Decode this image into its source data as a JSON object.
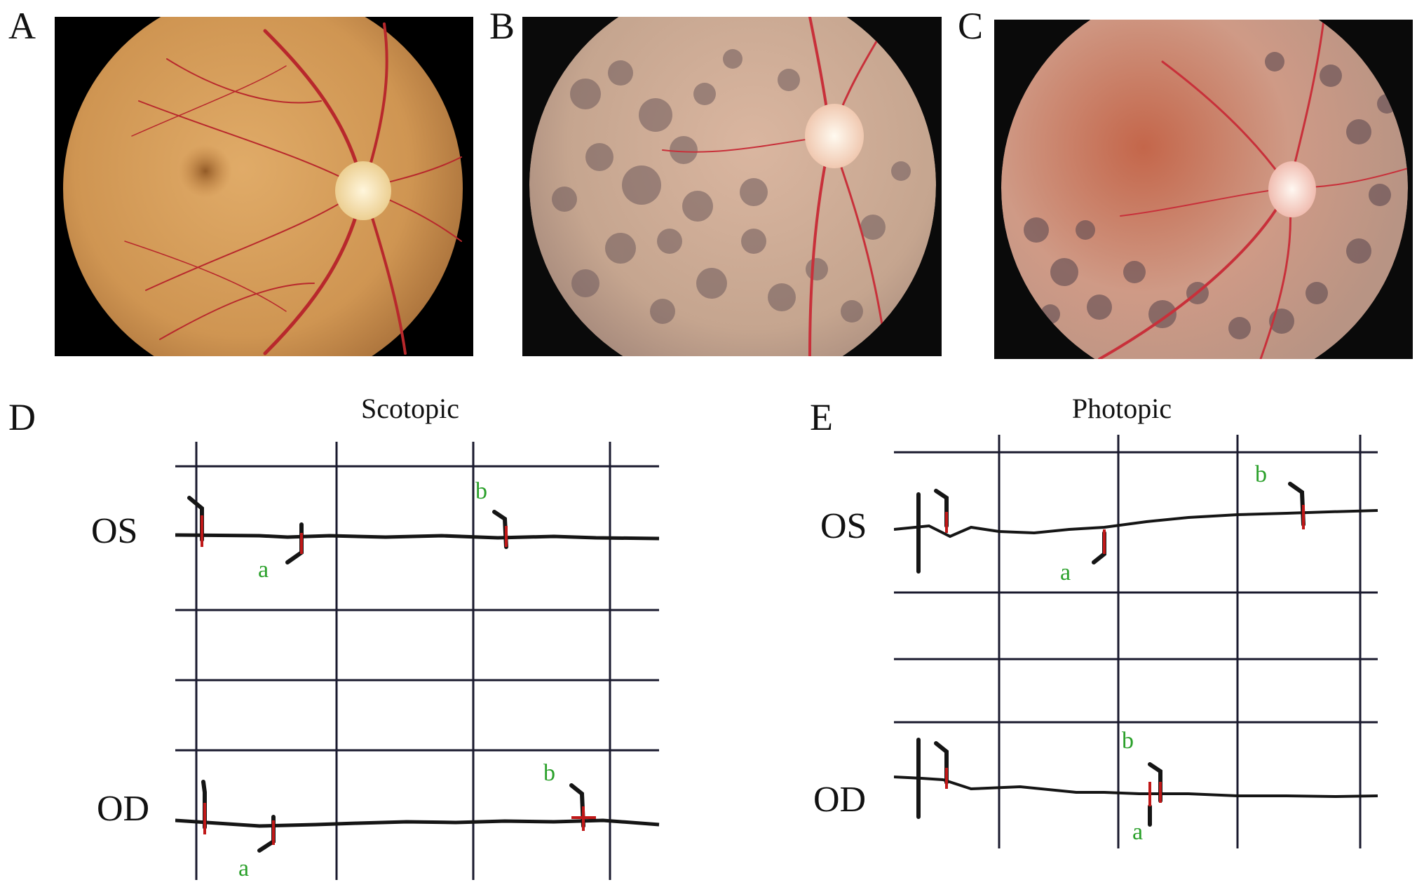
{
  "panels": {
    "A": {
      "label": "A"
    },
    "B": {
      "label": "B"
    },
    "C": {
      "label": "C"
    },
    "D": {
      "label": "D",
      "title": "Scotopic",
      "rows": {
        "os": "OS",
        "od": "OD"
      },
      "markers": {
        "os_a": "a",
        "os_b": "b",
        "od_a": "a",
        "od_b": "b"
      }
    },
    "E": {
      "label": "E",
      "title": "Photopic",
      "rows": {
        "os": "OS",
        "od": "OD"
      },
      "markers": {
        "os_a": "a",
        "os_b": "b",
        "od_a": "a",
        "od_b": "b"
      }
    }
  },
  "colors": {
    "fundus_normal": "#d39a5a",
    "fundus_rp": "#c9a890",
    "vessel": "#b8282c",
    "disc": "#f3e6c8",
    "pigment": "#6e5a5c",
    "grid": "#1a1a2e",
    "trace": "#151515",
    "cursor": "#c01818",
    "marker_text": "#2aa02a"
  }
}
